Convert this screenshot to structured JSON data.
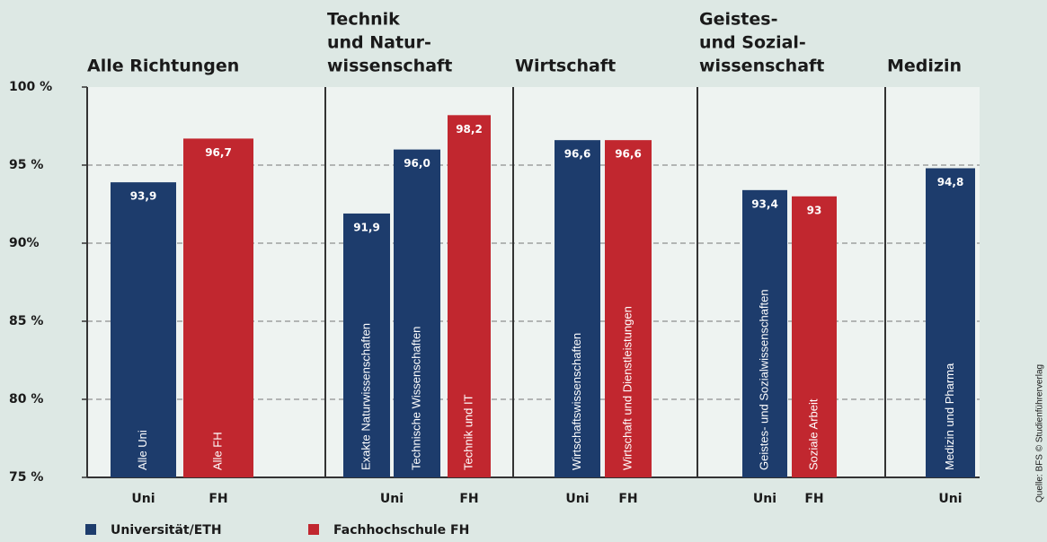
{
  "chart_data": {
    "type": "bar",
    "ylim": [
      75,
      100
    ],
    "yticks": [
      {
        "value": 75,
        "label": "75 %"
      },
      {
        "value": 80,
        "label": "80 %"
      },
      {
        "value": 85,
        "label": "85 %"
      },
      {
        "value": 90,
        "label": "90%"
      },
      {
        "value": 95,
        "label": "95 %"
      },
      {
        "value": 100,
        "label": "100 %"
      }
    ],
    "grid": true,
    "legend": [
      {
        "name": "Universität/ETH",
        "color": "#1d3c6c"
      },
      {
        "name": "Fachhochschule FH",
        "color": "#c1272f"
      }
    ],
    "source": "Quelle: BFS © Studienführerverlag",
    "groups": [
      {
        "title": [
          "Alle Richtungen"
        ],
        "x_labels": [
          "Uni",
          "FH"
        ],
        "bars": [
          {
            "name": "Alle Uni",
            "value": 93.9,
            "value_label": "93,9",
            "color": "#1d3c6c"
          },
          {
            "name": "Alle FH",
            "value": 96.7,
            "value_label": "96,7",
            "color": "#c1272f"
          }
        ]
      },
      {
        "title": [
          "Technik",
          "und Natur-",
          "wissenschaft"
        ],
        "x_labels": [
          "Uni",
          "FH"
        ],
        "bars": [
          {
            "name": "Exakte Naturwissenschaften",
            "value": 91.9,
            "value_label": "91,9",
            "color": "#1d3c6c"
          },
          {
            "name": "Technische Wissenschaften",
            "value": 96.0,
            "value_label": "96,0",
            "color": "#1d3c6c"
          },
          {
            "name": "Technik und IT",
            "value": 98.2,
            "value_label": "98,2",
            "color": "#c1272f"
          }
        ]
      },
      {
        "title": [
          "Wirtschaft"
        ],
        "x_labels": [
          "Uni",
          "FH"
        ],
        "bars": [
          {
            "name": "Wirtschaftswissenschaften",
            "value": 96.6,
            "value_label": "96,6",
            "color": "#1d3c6c"
          },
          {
            "name": "Wirtschaft und Dienstleistungen",
            "value": 96.6,
            "value_label": "96,6",
            "color": "#c1272f"
          }
        ]
      },
      {
        "title": [
          "Geistes-",
          "und Sozial-",
          "wissenschaft"
        ],
        "x_labels": [
          "Uni",
          "FH"
        ],
        "bars": [
          {
            "name": "Geistes- und Sozialwissenschaften",
            "value": 93.4,
            "value_label": "93,4",
            "color": "#1d3c6c"
          },
          {
            "name": "Soziale Arbeit",
            "value": 93,
            "color": "#c1272f"
          }
        ]
      },
      {
        "title": [
          "Medizin"
        ],
        "x_labels": [
          "Uni"
        ],
        "bars": [
          {
            "name": "Medizin und Pharma",
            "value": 94.8,
            "value_label": "94,8",
            "color": "#1d3c6c"
          }
        ]
      }
    ]
  }
}
